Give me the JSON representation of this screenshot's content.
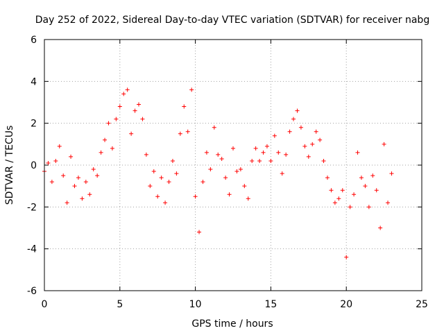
{
  "chart_data": {
    "type": "scatter",
    "title": "Day 252 of 2022, Sidereal Day-to-day VTEC variation (SDTVAR) for receiver nabg",
    "xlabel": "GPS time / hours",
    "ylabel": "SDTVAR / TECUs",
    "xlim": [
      0,
      25
    ],
    "ylim": [
      -6,
      6
    ],
    "xticks": [
      0,
      5,
      10,
      15,
      20,
      25
    ],
    "yticks": [
      -6,
      -4,
      -2,
      0,
      2,
      4,
      6
    ],
    "grid": true,
    "marker": "+",
    "color": "#ff0000",
    "series": [
      {
        "name": "SDTVAR",
        "x": [
          0.0,
          0.25,
          0.5,
          0.75,
          1.0,
          1.25,
          1.5,
          1.75,
          2.0,
          2.25,
          2.5,
          2.75,
          3.0,
          3.25,
          3.5,
          3.75,
          4.0,
          4.25,
          4.5,
          4.75,
          5.0,
          5.25,
          5.5,
          5.75,
          6.0,
          6.25,
          6.5,
          6.75,
          7.0,
          7.25,
          7.5,
          7.75,
          8.0,
          8.25,
          8.5,
          8.75,
          9.0,
          9.25,
          9.5,
          9.75,
          10.0,
          10.25,
          10.5,
          10.75,
          11.0,
          11.25,
          11.5,
          11.75,
          12.0,
          12.25,
          12.5,
          12.75,
          13.0,
          13.25,
          13.5,
          13.75,
          14.0,
          14.25,
          14.5,
          14.75,
          15.0,
          15.25,
          15.5,
          15.75,
          16.0,
          16.25,
          16.5,
          16.75,
          17.0,
          17.25,
          17.5,
          17.75,
          18.0,
          18.25,
          18.5,
          18.75,
          19.0,
          19.25,
          19.5,
          19.75,
          20.0,
          20.25,
          20.5,
          20.75,
          21.0,
          21.25,
          21.5,
          21.75,
          22.0,
          22.25,
          22.5,
          22.75,
          23.0
        ],
        "values": [
          -0.3,
          0.1,
          -0.8,
          0.2,
          0.9,
          -0.5,
          -1.8,
          0.4,
          -1.0,
          -0.6,
          -1.6,
          -0.8,
          -1.4,
          -0.2,
          -0.5,
          0.6,
          1.2,
          2.0,
          0.8,
          2.2,
          2.8,
          3.4,
          3.6,
          1.5,
          2.6,
          2.9,
          2.2,
          0.5,
          -1.0,
          -0.3,
          -1.5,
          -0.6,
          -1.8,
          -0.8,
          0.2,
          -0.4,
          1.5,
          2.8,
          1.6,
          3.6,
          -1.5,
          -3.2,
          -0.8,
          0.6,
          -0.2,
          1.8,
          0.5,
          0.3,
          -0.6,
          -1.4,
          0.8,
          -0.3,
          -0.2,
          -1.0,
          -1.6,
          0.2,
          0.8,
          0.2,
          0.6,
          0.9,
          0.2,
          1.4,
          0.6,
          -0.4,
          0.5,
          1.6,
          2.2,
          2.6,
          1.8,
          0.9,
          0.4,
          1.0,
          1.6,
          1.2,
          0.2,
          -0.6,
          -1.2,
          -1.8,
          -1.6,
          -1.2,
          -4.4,
          -2.0,
          -1.4,
          0.6,
          -0.6,
          -1.0,
          -2.0,
          -0.5,
          -1.2,
          -3.0,
          1.0,
          -1.8,
          -0.4
        ]
      }
    ]
  }
}
